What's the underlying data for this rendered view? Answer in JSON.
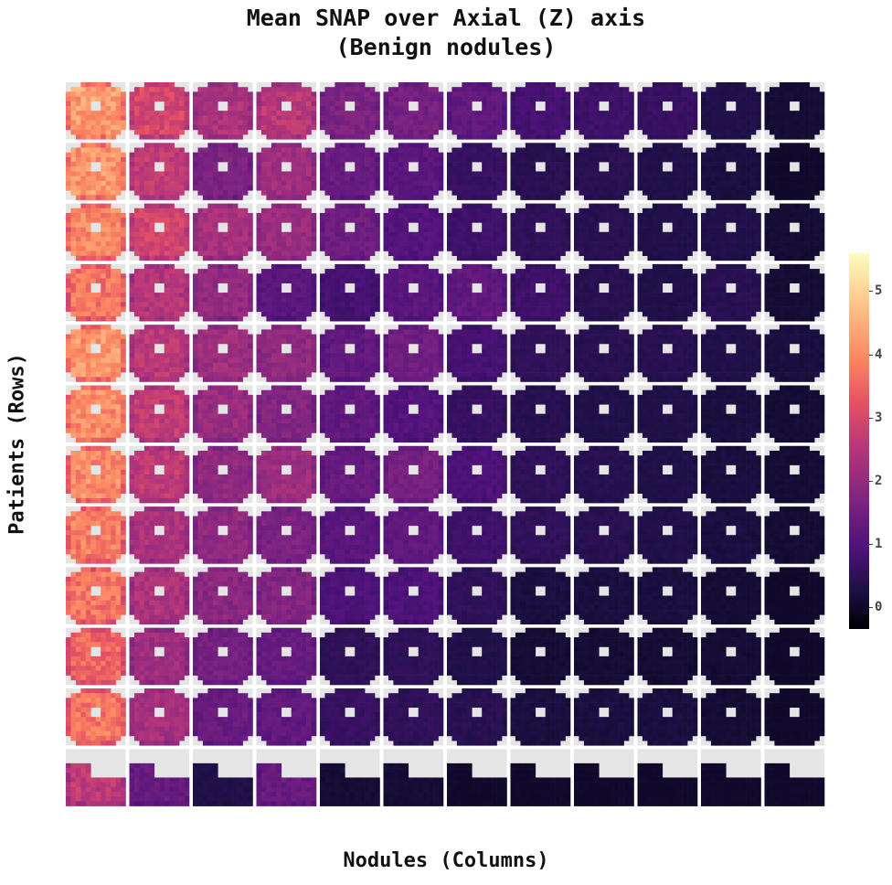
{
  "title_line1": "Mean SNAP over Axial (Z) axis",
  "title_line2": "(Benign nodules)",
  "chart_data": {
    "type": "heatmap",
    "xlabel": "Nodules (Columns)",
    "ylabel": "Patients (Rows)",
    "rows": 12,
    "cols": 12,
    "colormap": "magma",
    "colorbar": {
      "ticks": [
        0,
        1,
        2,
        3,
        4,
        5
      ],
      "range": [
        -0.35,
        5.6
      ]
    },
    "mean_intensity": [
      [
        4.1,
        2.9,
        2.3,
        2.5,
        1.6,
        1.5,
        1.2,
        0.8,
        0.7,
        0.6,
        0.3,
        0.1
      ],
      [
        4.0,
        2.6,
        1.6,
        2.1,
        1.3,
        1.1,
        0.6,
        0.4,
        0.4,
        0.3,
        0.2,
        0.0
      ],
      [
        3.8,
        2.8,
        2.2,
        2.0,
        1.4,
        1.0,
        0.7,
        0.5,
        0.4,
        0.3,
        0.3,
        0.1
      ],
      [
        3.6,
        2.4,
        1.9,
        1.1,
        0.8,
        1.1,
        1.2,
        0.7,
        0.4,
        0.3,
        0.4,
        0.1
      ],
      [
        4.0,
        2.5,
        2.1,
        1.9,
        1.2,
        1.4,
        0.8,
        0.5,
        0.4,
        0.4,
        0.3,
        0.2
      ],
      [
        3.9,
        2.6,
        2.0,
        1.7,
        1.2,
        1.0,
        0.6,
        0.4,
        0.3,
        0.3,
        0.2,
        0.1
      ],
      [
        3.9,
        2.6,
        1.9,
        2.1,
        1.3,
        1.5,
        0.9,
        0.5,
        0.4,
        0.3,
        0.2,
        0.1
      ],
      [
        3.7,
        2.3,
        1.9,
        1.6,
        1.1,
        1.2,
        0.7,
        0.5,
        0.4,
        0.3,
        0.2,
        0.1
      ],
      [
        3.6,
        2.3,
        1.8,
        1.7,
        0.9,
        0.9,
        0.5,
        0.2,
        0.2,
        0.2,
        0.1,
        0.0
      ],
      [
        3.4,
        2.1,
        1.5,
        1.3,
        0.5,
        0.5,
        0.3,
        0.1,
        0.1,
        0.1,
        0.1,
        0.0
      ],
      [
        3.6,
        2.2,
        1.3,
        1.2,
        0.6,
        0.5,
        0.4,
        0.2,
        0.2,
        0.2,
        0.1,
        0.0
      ],
      [
        2.6,
        1.3,
        0.3,
        1.3,
        0.1,
        0.1,
        0.0,
        0.0,
        0.0,
        0.0,
        0.0,
        0.0
      ]
    ]
  }
}
